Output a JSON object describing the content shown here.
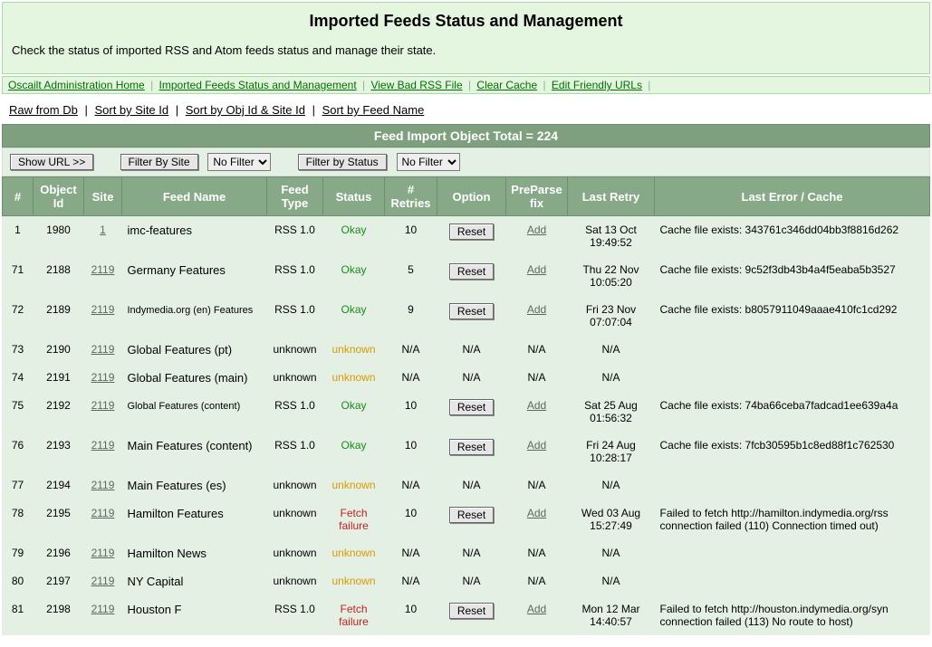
{
  "header": {
    "title": "Imported Feeds Status and Management",
    "subtitle": "Check the status of imported RSS and Atom feeds status and manage their state."
  },
  "navbar": [
    "Oscailt Administration Home",
    "Imported Feeds Status and Management",
    "View Bad RSS File",
    "Clear Cache",
    "Edit Friendly URLs"
  ],
  "sortbar": [
    "Raw from Db",
    "Sort by Site Id",
    "Sort by Obj Id & Site Id",
    "Sort by Feed Name"
  ],
  "total_label": "Feed Import Object Total = 224",
  "filterbar": {
    "show_url_btn": "Show URL >>",
    "filter_by_site_btn": "Filter By Site",
    "filter_by_site_value": "No Filter",
    "filter_by_status_btn": "Filter by Status",
    "filter_by_status_value": "No Filter"
  },
  "columns": [
    "#",
    "Object Id",
    "Site",
    "Feed Name",
    "Feed Type",
    "Status",
    "# Retries",
    "Option",
    "PreParse fix",
    "Last Retry",
    "Last Error / Cache"
  ],
  "status_classes": {
    "Okay": "status-okay",
    "unknown": "status-unknown",
    "Fetch failure": "status-fetch"
  },
  "reset_label": "Reset",
  "add_label": "Add",
  "rows": [
    {
      "n": "1",
      "obj": "1980",
      "site": "1",
      "name": "imc-features",
      "small": false,
      "type": "RSS 1.0",
      "status": "Okay",
      "retries": "10",
      "reset": true,
      "add": true,
      "last": "Sat 13 Oct 19:49:52",
      "err": "Cache file exists: 343761c346dd04bb3f8816d262"
    },
    {
      "n": "71",
      "obj": "2188",
      "site": "2119",
      "name": "Germany Features",
      "small": false,
      "type": "RSS 1.0",
      "status": "Okay",
      "retries": "5",
      "reset": true,
      "add": true,
      "last": "Thu 22 Nov 10:05:20",
      "err": "Cache file exists: 9c52f3db43b4a4f5eaba5b3527"
    },
    {
      "n": "72",
      "obj": "2189",
      "site": "2119",
      "name": "Indymedia.org (en) Features",
      "small": true,
      "type": "RSS 1.0",
      "status": "Okay",
      "retries": "9",
      "reset": true,
      "add": true,
      "last": "Fri 23 Nov 07:07:04",
      "err": "Cache file exists: b8057911049aaae410fc1cd292"
    },
    {
      "n": "73",
      "obj": "2190",
      "site": "2119",
      "name": "Global Features (pt)",
      "small": false,
      "type": "unknown",
      "status": "unknown",
      "retries": "N/A",
      "reset": false,
      "add": false,
      "last": "N/A",
      "err": ""
    },
    {
      "n": "74",
      "obj": "2191",
      "site": "2119",
      "name": "Global Features (main)",
      "small": false,
      "type": "unknown",
      "status": "unknown",
      "retries": "N/A",
      "reset": false,
      "add": false,
      "last": "N/A",
      "err": ""
    },
    {
      "n": "75",
      "obj": "2192",
      "site": "2119",
      "name": "Global Features (content)",
      "small": true,
      "type": "RSS 1.0",
      "status": "Okay",
      "retries": "10",
      "reset": true,
      "add": true,
      "last": "Sat 25 Aug 01:56:32",
      "err": "Cache file exists: 74ba66ceba7fadcad1ee639a4a"
    },
    {
      "n": "76",
      "obj": "2193",
      "site": "2119",
      "name": "Main Features (content)",
      "small": false,
      "type": "RSS 1.0",
      "status": "Okay",
      "retries": "10",
      "reset": true,
      "add": true,
      "last": "Fri 24 Aug 10:28:17",
      "err": "Cache file exists: 7fcb30595b1c8ed88f1c762530"
    },
    {
      "n": "77",
      "obj": "2194",
      "site": "2119",
      "name": "Main Features (es)",
      "small": false,
      "type": "unknown",
      "status": "unknown",
      "retries": "N/A",
      "reset": false,
      "add": false,
      "last": "N/A",
      "err": ""
    },
    {
      "n": "78",
      "obj": "2195",
      "site": "2119",
      "name": "Hamilton Features",
      "small": false,
      "type": "unknown",
      "status": "Fetch failure",
      "retries": "10",
      "reset": true,
      "add": true,
      "last": "Wed 03 Aug 15:27:49",
      "err": "Failed to fetch http://hamilton.indymedia.org/rss connection failed (110) Connection timed out)"
    },
    {
      "n": "79",
      "obj": "2196",
      "site": "2119",
      "name": "Hamilton News",
      "small": false,
      "type": "unknown",
      "status": "unknown",
      "retries": "N/A",
      "reset": false,
      "add": false,
      "last": "N/A",
      "err": ""
    },
    {
      "n": "80",
      "obj": "2197",
      "site": "2119",
      "name": "NY Capital",
      "small": false,
      "type": "unknown",
      "status": "unknown",
      "retries": "N/A",
      "reset": false,
      "add": false,
      "last": "N/A",
      "err": ""
    },
    {
      "n": "81",
      "obj": "2198",
      "site": "2119",
      "name": "Houston F",
      "small": false,
      "type": "RSS 1.0",
      "status": "Fetch failure",
      "retries": "10",
      "reset": true,
      "add": true,
      "last": "Mon 12 Mar 14:40:57",
      "err": "Failed to fetch http://houston.indymedia.org/syn connection failed (113) No route to host)"
    }
  ]
}
